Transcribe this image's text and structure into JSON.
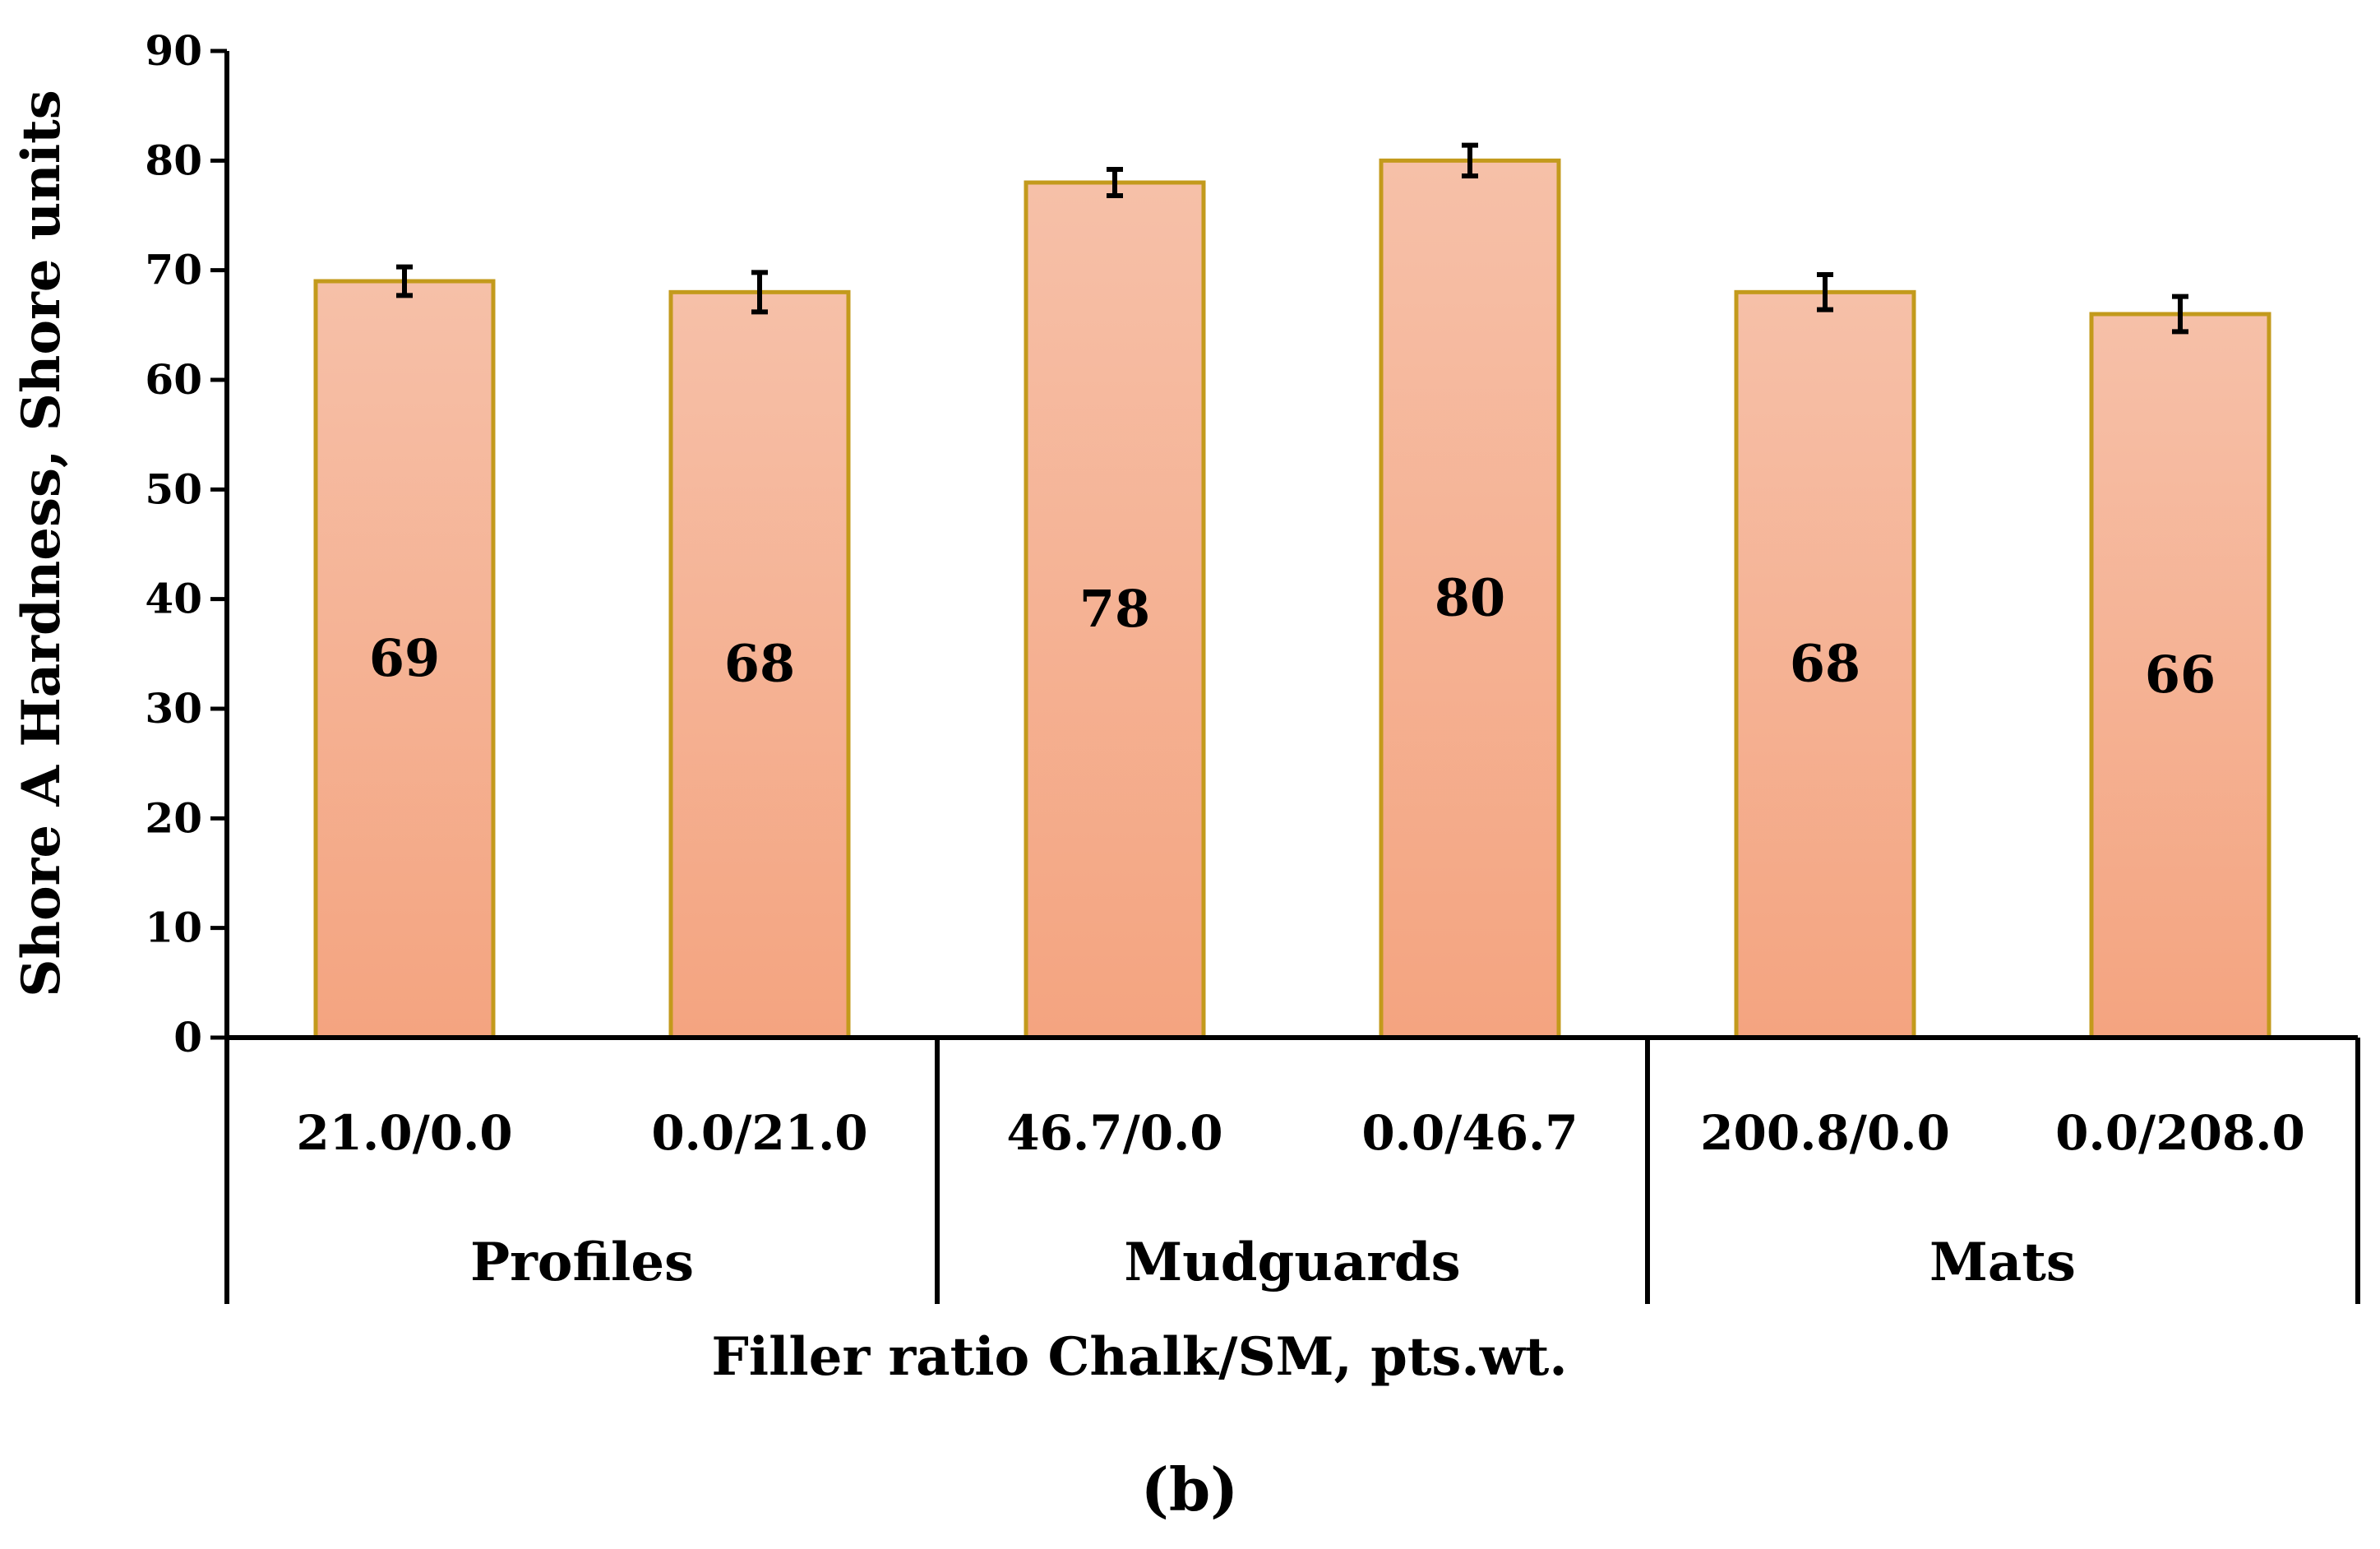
{
  "chart_data": {
    "type": "bar",
    "ylabel": "Shore A Hardness, Shore units",
    "xlabel": "Filler ratio Chalk/SM, pts.wt.",
    "panel_label_prefix": "(",
    "panel_label_letter": "b",
    "panel_label_suffix": ")",
    "ylim": [
      0,
      90
    ],
    "yticks": [
      "0",
      "10",
      "20",
      "30",
      "40",
      "50",
      "60",
      "70",
      "80",
      "90"
    ],
    "categories": [
      "21.0/0.0",
      "0.0/21.0",
      "46.7/0.0",
      "0.0/46.7",
      "200.8/0.0",
      "0.0/208.0"
    ],
    "values": [
      69,
      68,
      78,
      80,
      68,
      66
    ],
    "errors": [
      1.3,
      1.8,
      1.2,
      1.4,
      1.6,
      1.6
    ],
    "value_labels": [
      "69",
      "68",
      "78",
      "80",
      "68",
      "66"
    ],
    "groups": [
      {
        "name": "Profiles",
        "size": 2
      },
      {
        "name": "Mudguards",
        "size": 2
      },
      {
        "name": "Mats",
        "size": 2
      }
    ],
    "bar_fill_top": "#f6c0a8",
    "bar_fill_bottom": "#f4a480",
    "bar_stroke": "#c39a1c"
  }
}
